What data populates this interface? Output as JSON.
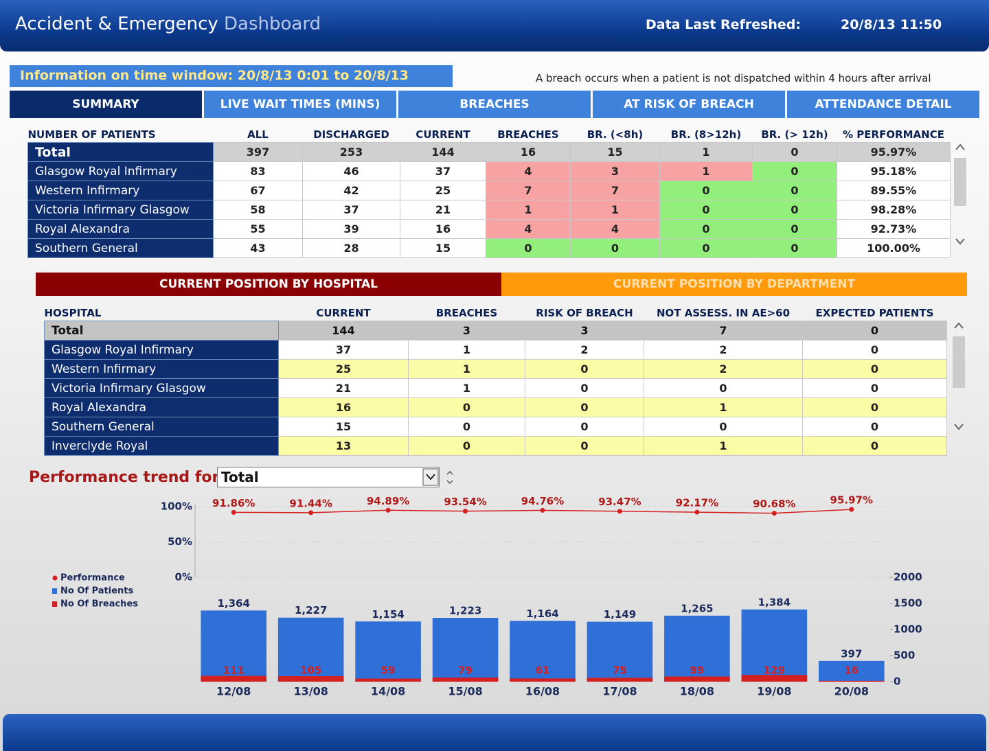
{
  "header": {
    "title": "Accident & Emergency",
    "title_suffix": "Dashboard",
    "refreshed_label": "Data Last Refreshed:",
    "refreshed_value": "20/8/13 11:50"
  },
  "info": {
    "time_window": "Information on time window: 20/8/13 0:01 to 20/8/13",
    "breach_note": "A breach occurs when a patient is not dispatched within 4 hours after arrival"
  },
  "tabs": [
    "SUMMARY",
    "LIVE WAIT TIMES (MINS)",
    "BREACHES",
    "AT RISK OF BREACH",
    "ATTENDANCE DETAIL"
  ],
  "summary_table": {
    "columns": [
      "NUMBER OF PATIENTS",
      "ALL",
      "DISCHARGED",
      "CURRENT",
      "BREACHES",
      "BR. (<8h)",
      "BR. (8>12h)",
      "BR. (> 12h)",
      "% PERFORMANCE"
    ],
    "total": {
      "name": "Total",
      "values": [
        "397",
        "253",
        "144",
        "16",
        "15",
        "1",
        "0",
        "95.97%"
      ]
    },
    "rows": [
      {
        "name": "Glasgow Royal Infirmary",
        "values": [
          "83",
          "46",
          "37",
          "4",
          "3",
          "1",
          "0",
          "95.18%"
        ],
        "status": [
          "#f7a3a3",
          "#f7a3a3",
          "#f7a3a3",
          "#93ef7c"
        ]
      },
      {
        "name": "Western Infirmary",
        "values": [
          "67",
          "42",
          "25",
          "7",
          "7",
          "0",
          "0",
          "89.55%"
        ],
        "status": [
          "#f7a3a3",
          "#f7a3a3",
          "#93ef7c",
          "#93ef7c"
        ]
      },
      {
        "name": "Victoria Infirmary Glasgow",
        "values": [
          "58",
          "37",
          "21",
          "1",
          "1",
          "0",
          "0",
          "98.28%"
        ],
        "status": [
          "#f7a3a3",
          "#f7a3a3",
          "#93ef7c",
          "#93ef7c"
        ]
      },
      {
        "name": "Royal Alexandra",
        "values": [
          "55",
          "39",
          "16",
          "4",
          "4",
          "0",
          "0",
          "92.73%"
        ],
        "status": [
          "#f7a3a3",
          "#f7a3a3",
          "#93ef7c",
          "#93ef7c"
        ]
      },
      {
        "name": "Southern General",
        "values": [
          "43",
          "28",
          "15",
          "0",
          "0",
          "0",
          "0",
          "100.00%"
        ],
        "status": [
          "#93ef7c",
          "#93ef7c",
          "#93ef7c",
          "#93ef7c"
        ]
      }
    ]
  },
  "section_tabs": [
    "CURRENT POSITION  BY HOSPITAL",
    "CURRENT POSITION BY DEPARTMENT"
  ],
  "hospital_table": {
    "columns": [
      "HOSPITAL",
      "CURRENT",
      "BREACHES",
      "RISK OF BREACH",
      "NOT ASSESS. IN AE>60",
      "EXPECTED PATIENTS"
    ],
    "total": {
      "name": "Total",
      "values": [
        "144",
        "3",
        "3",
        "7",
        "0"
      ]
    },
    "rows": [
      {
        "name": "Glasgow Royal Infirmary",
        "values": [
          "37",
          "1",
          "2",
          "2",
          "0"
        ]
      },
      {
        "name": "Western Infirmary",
        "values": [
          "25",
          "1",
          "0",
          "2",
          "0"
        ]
      },
      {
        "name": "Victoria Infirmary Glasgow",
        "values": [
          "21",
          "1",
          "0",
          "0",
          "0"
        ]
      },
      {
        "name": "Royal Alexandra",
        "values": [
          "16",
          "0",
          "0",
          "1",
          "0"
        ]
      },
      {
        "name": "Southern General",
        "values": [
          "15",
          "0",
          "0",
          "0",
          "0"
        ]
      },
      {
        "name": "Inverclyde Royal",
        "values": [
          "13",
          "0",
          "0",
          "1",
          "0"
        ]
      }
    ]
  },
  "trend": {
    "label": "Performance trend for:",
    "selected": "Total"
  },
  "chart_data": {
    "type": "bar",
    "categories": [
      "12/08",
      "13/08",
      "14/08",
      "15/08",
      "16/08",
      "17/08",
      "18/08",
      "19/08",
      "20/08"
    ],
    "series": [
      {
        "name": "Performance",
        "type": "line",
        "color": "#d42020",
        "values": [
          91.86,
          91.44,
          94.89,
          93.54,
          94.76,
          93.47,
          92.17,
          90.68,
          95.97
        ],
        "value_labels": [
          "91.86%",
          "91.44%",
          "94.89%",
          "93.54%",
          "94.76%",
          "93.47%",
          "92.17%",
          "90.68%",
          "95.97%"
        ]
      },
      {
        "name": "No Of Patients",
        "axis": "y2",
        "color": "#2e6fd8",
        "values": [
          1364,
          1227,
          1154,
          1223,
          1164,
          1149,
          1265,
          1384,
          397
        ],
        "value_labels": [
          "1,364",
          "1,227",
          "1,154",
          "1,223",
          "1,164",
          "1,149",
          "1,265",
          "1,384",
          "397"
        ]
      },
      {
        "name": "No Of Breaches",
        "axis": "y2",
        "color": "#d42020",
        "values": [
          111,
          105,
          59,
          79,
          61,
          75,
          99,
          129,
          16
        ]
      }
    ],
    "ylim": [
      0,
      100
    ],
    "yticks": [
      {
        "value": 0,
        "label": "0%"
      },
      {
        "value": 50,
        "label": "50%"
      },
      {
        "value": 100,
        "label": "100%"
      }
    ],
    "y2lim": [
      0,
      2000
    ],
    "y2ticks": [
      0,
      500,
      1000,
      1500,
      2000
    ],
    "grid": true,
    "legend": "left"
  }
}
